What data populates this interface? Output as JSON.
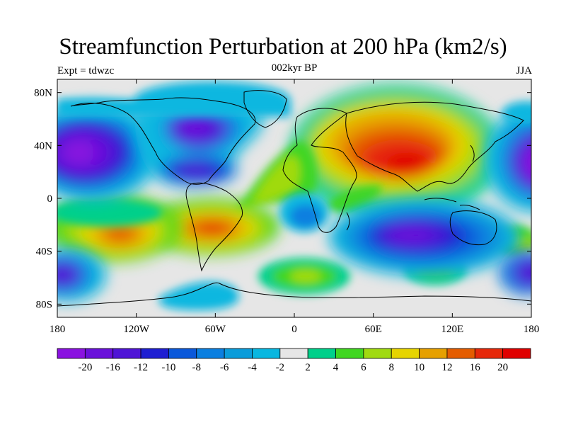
{
  "chart_data": {
    "type": "filled-contour-map",
    "title": "Streamfunction Perturbation at 200 hPa (km2/s)",
    "subtitle_left": "Expt = tdwzc",
    "subtitle_center": "002kyr BP",
    "subtitle_right": "JJA",
    "x_ticks": [
      "180",
      "120W",
      "60W",
      "0",
      "60E",
      "120E",
      "180"
    ],
    "y_ticks": [
      "80N",
      "40N",
      "0",
      "40S",
      "80S"
    ],
    "lon_range": [
      -180,
      180
    ],
    "lat_range": [
      -90,
      90
    ],
    "colorbar": {
      "levels": [
        "-20",
        "-16",
        "-12",
        "-10",
        "-8",
        "-6",
        "-4",
        "-2",
        "2",
        "4",
        "6",
        "8",
        "10",
        "12",
        "16",
        "20"
      ],
      "colors": [
        "#8a12e0",
        "#6a10da",
        "#4f14d6",
        "#1e1ed2",
        "#0a58da",
        "#0a7fe0",
        "#0a9cda",
        "#08b7e0",
        "#e6e6e6",
        "#00d08a",
        "#40d620",
        "#a0da10",
        "#e6d400",
        "#e6a000",
        "#e45c00",
        "#e6280a",
        "#e00000"
      ]
    },
    "features": [
      {
        "name": "Asian high",
        "lon": 80,
        "lat": 32,
        "value": 20
      },
      {
        "name": "South Atlantic high",
        "lon": -60,
        "lat": -20,
        "value": 16
      },
      {
        "name": "South Pacific high",
        "lon": -130,
        "lat": -30,
        "value": 12
      },
      {
        "name": "Indian Ocean low",
        "lon": 90,
        "lat": -35,
        "value": -16
      },
      {
        "name": "North Pacific low",
        "lon": -160,
        "lat": 38,
        "value": -20
      },
      {
        "name": "Caribbean low",
        "lon": -70,
        "lat": 22,
        "value": -12
      },
      {
        "name": "Hudson low",
        "lon": -70,
        "lat": 55,
        "value": -12
      },
      {
        "name": "SE Pacific low",
        "lon": -170,
        "lat": -55,
        "value": -12
      }
    ]
  }
}
